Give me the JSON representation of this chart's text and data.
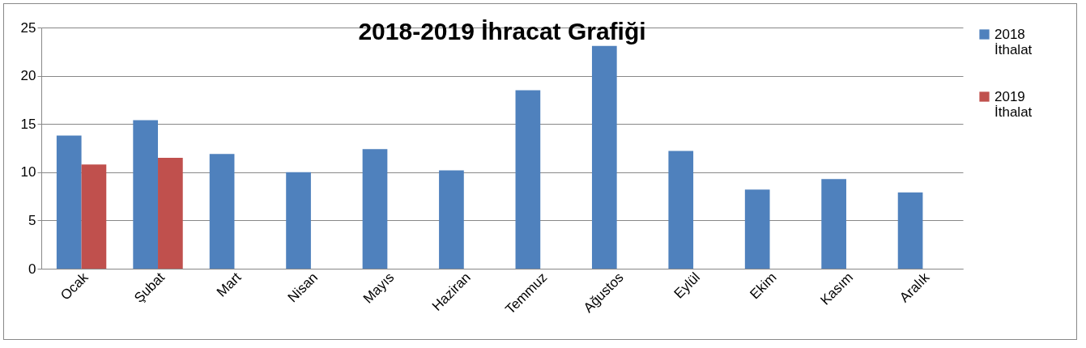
{
  "chart_data": {
    "type": "bar",
    "title": "2018-2019 İhracat Grafiği",
    "categories": [
      "Ocak",
      "Şubat",
      "Mart",
      "Nisan",
      "Mayıs",
      "Haziran",
      "Temmuz",
      "Ağustos",
      "Eylül",
      "Ekim",
      "Kasım",
      "Aralık"
    ],
    "series": [
      {
        "name": "2018 İthalat",
        "color": "#4f81bd",
        "values": [
          13.8,
          15.4,
          11.9,
          10,
          12.4,
          10.2,
          18.5,
          23.1,
          12.2,
          8.2,
          9.3,
          7.9
        ]
      },
      {
        "name": "2019 İthalat",
        "color": "#c0504d",
        "values": [
          10.8,
          11.5,
          null,
          null,
          null,
          null,
          null,
          null,
          null,
          null,
          null,
          null
        ]
      }
    ],
    "ylim": [
      0,
      25
    ],
    "yticks": [
      0,
      5,
      10,
      15,
      20,
      25
    ],
    "grid": "y",
    "legend": "right"
  }
}
